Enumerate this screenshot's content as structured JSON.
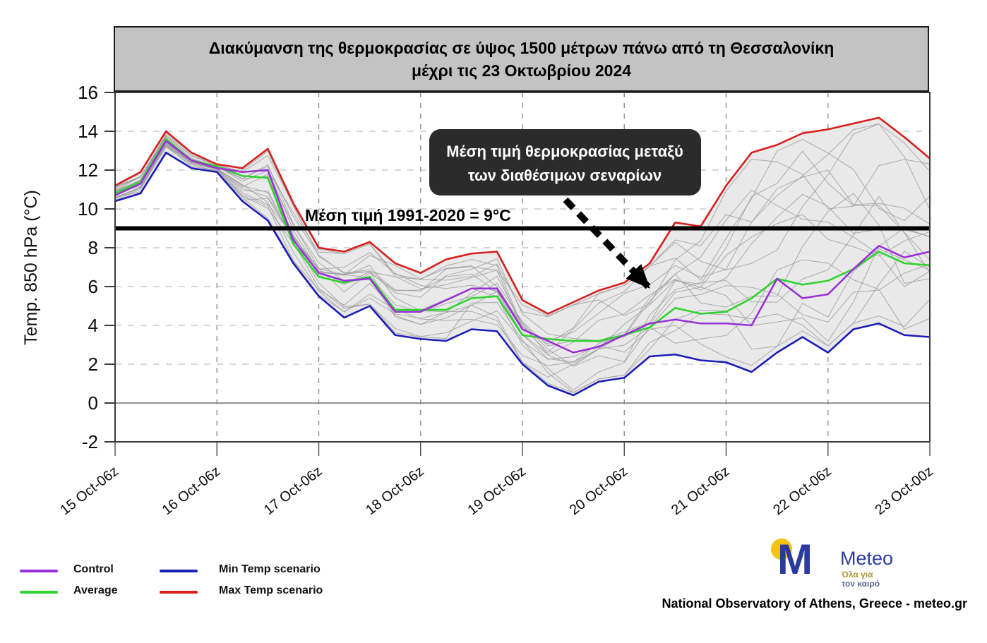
{
  "title": {
    "line1": "Διακύμανση της θερμοκρασίας σε ύψος 1500 μέτρων πάνω από τη Θεσσαλονίκη",
    "line2": "μέχρι τις 23 Οκτωβρίου 2024"
  },
  "y_axis": {
    "label": "Temp. 850 hPa (°C)"
  },
  "reference_line": {
    "value": 9,
    "label": "Μέση τιμή 1991-2020 = 9°C"
  },
  "annotation": {
    "line1": "Μέση τιμή θερμοκρασίας μεταξύ",
    "line2": "των διαθέσιμων σεναρίων"
  },
  "legend": {
    "items": [
      {
        "label": "Control",
        "color": "#9a30d8"
      },
      {
        "label": "Average",
        "color": "#2ed32e"
      },
      {
        "label": "Min Temp scenario",
        "color": "#1c1cb8"
      },
      {
        "label": "Max Temp scenario",
        "color": "#d81e1e"
      }
    ]
  },
  "logo": {
    "brand": "Meteo",
    "tagline1": "Όλα για",
    "tagline2": "τον καιρό"
  },
  "footer": {
    "credit": "National Observatory of Athens, Greece - meteo.gr"
  },
  "chart_data": {
    "type": "line",
    "title": "Διακύμανση της θερμοκρασίας σε ύψος 1500 μέτρων πάνω από τη Θεσσαλονίκη μέχρι τις 23 Οκτωβρίου 2024",
    "ylabel": "Temp. 850 hPa (°C)",
    "ylim": [
      -2,
      16
    ],
    "yticks": [
      16,
      14,
      12,
      10,
      8,
      6,
      4,
      2,
      0,
      -2
    ],
    "x_labels": [
      "15 Oct-06z",
      "16 Oct-06z",
      "17 Oct-06z",
      "18 Oct-06z",
      "19 Oct-06z",
      "20 Oct-06z",
      "21 Oct-06z",
      "22 Oct-06z",
      "23 Oct-00z"
    ],
    "points_per_label": 4,
    "n_points": 33,
    "grid": {
      "vertical": "dashed at each labeled tick",
      "horizontal": "dashed every 2°C, solid at 0°C"
    },
    "legend_position": "bottom-left",
    "reference_line": {
      "value": 9,
      "label": "Μέση τιμή 1991-2020 = 9°C",
      "color": "#000000"
    },
    "series": [
      {
        "name": "Max Temp scenario",
        "color": "#d81e1e",
        "values": [
          11.2,
          11.9,
          14.0,
          12.9,
          12.3,
          12.1,
          13.1,
          10.3,
          8.0,
          7.8,
          8.3,
          7.2,
          6.7,
          7.4,
          7.7,
          7.8,
          5.3,
          4.6,
          5.2,
          5.8,
          6.2,
          7.2,
          9.3,
          9.1,
          11.2,
          12.9,
          13.3,
          13.9,
          14.1,
          14.4,
          14.7,
          13.7,
          12.6
        ]
      },
      {
        "name": "Min Temp scenario",
        "color": "#1c1cb8",
        "values": [
          10.4,
          10.8,
          12.9,
          12.1,
          11.9,
          10.4,
          9.4,
          7.2,
          5.5,
          4.4,
          5.0,
          3.5,
          3.3,
          3.2,
          3.8,
          3.7,
          2.0,
          0.9,
          0.4,
          1.1,
          1.3,
          2.4,
          2.5,
          2.2,
          2.1,
          1.6,
          2.6,
          3.4,
          2.6,
          3.8,
          4.1,
          3.5,
          3.4
        ]
      },
      {
        "name": "Average",
        "color": "#2ed32e",
        "values": [
          10.8,
          11.4,
          13.6,
          12.5,
          12.2,
          11.7,
          11.6,
          8.2,
          6.5,
          6.2,
          6.5,
          4.8,
          4.8,
          4.8,
          5.4,
          5.5,
          3.5,
          3.3,
          3.2,
          3.2,
          3.5,
          3.9,
          4.9,
          4.6,
          4.7,
          5.4,
          6.4,
          6.1,
          6.3,
          6.9,
          7.8,
          7.2,
          7.1
        ]
      },
      {
        "name": "Control",
        "color": "#9a30d8",
        "values": [
          10.7,
          11.3,
          13.5,
          12.5,
          12.1,
          11.9,
          12.0,
          8.4,
          6.7,
          6.3,
          6.4,
          4.7,
          4.7,
          5.3,
          5.9,
          5.9,
          3.8,
          3.2,
          2.6,
          2.9,
          3.5,
          4.1,
          4.3,
          4.1,
          4.1,
          4.0,
          6.4,
          5.4,
          5.6,
          6.9,
          8.1,
          7.5,
          7.8
        ]
      }
    ],
    "ensemble_members": {
      "description": "≈18 thin gray ensemble scenario lines between min and max, shaded envelope",
      "count": 17,
      "color": "#9b9b9b",
      "fill": "#e9e9e9",
      "seed": 11,
      "noise": 0.16
    },
    "annotation": {
      "text": "Μέση τιμή θερμοκρασίας μεταξύ των διαθέσιμων σεναρίων",
      "arrow_from": [
        801,
        283
      ],
      "arrow_to": [
        932,
        420
      ]
    }
  }
}
